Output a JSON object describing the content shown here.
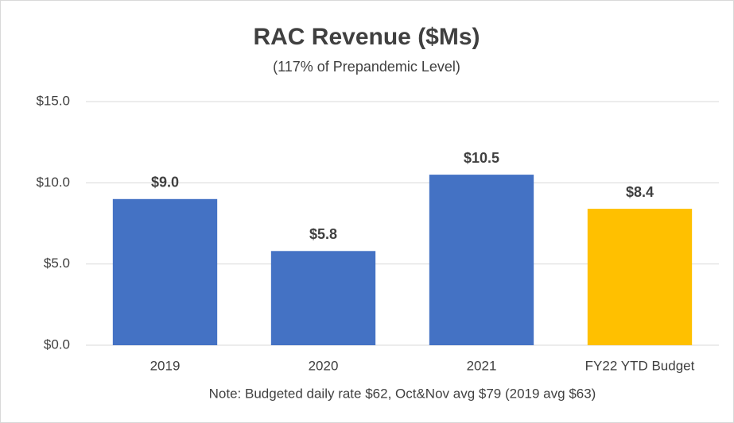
{
  "chart_data": {
    "type": "bar",
    "title": "RAC Revenue ($Ms)",
    "subtitle": "(117% of Prepandemic Level)",
    "categories": [
      "2019",
      "2020",
      "2021",
      "FY22 YTD Budget"
    ],
    "values": [
      9.0,
      5.8,
      10.5,
      8.4
    ],
    "value_labels": [
      "$9.0",
      "$5.8",
      "$10.5",
      "$8.4"
    ],
    "colors": [
      "#4472c4",
      "#4472c4",
      "#4472c4",
      "#ffc000"
    ],
    "ylim": [
      0,
      15
    ],
    "yticks": [
      {
        "value": 0,
        "label": "$0.0"
      },
      {
        "value": 5,
        "label": "$5.0"
      },
      {
        "value": 10,
        "label": "$10.0"
      },
      {
        "value": 15,
        "label": "$15.0"
      }
    ],
    "grid": true,
    "note": "Note: Budgeted daily rate $62, Oct&Nov avg $79 (2019 avg $63)"
  }
}
